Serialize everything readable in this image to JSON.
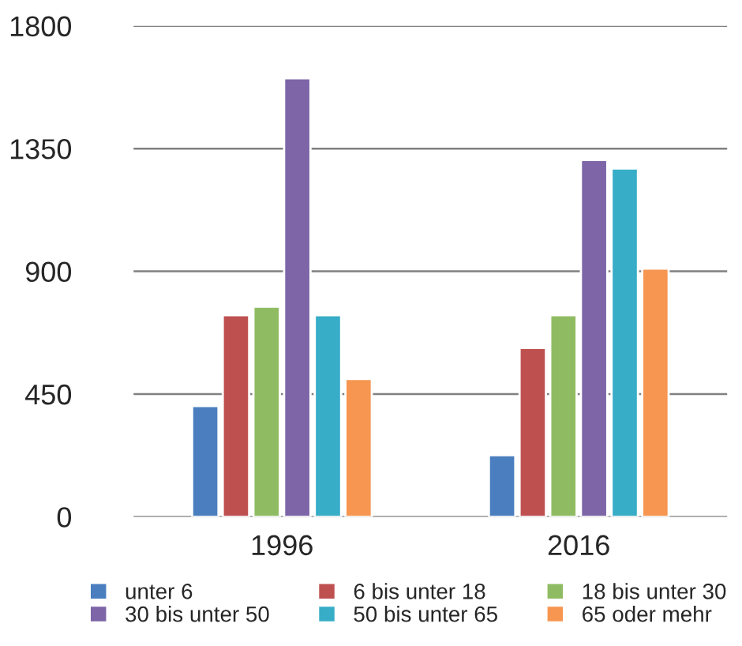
{
  "chart_data": {
    "type": "bar",
    "categories": [
      "1996",
      "2016"
    ],
    "series": [
      {
        "name": "unter 6",
        "color": "#4a7ebf",
        "values": [
          406,
          226
        ]
      },
      {
        "name": "6 bis unter 18",
        "color": "#be5150",
        "values": [
          739,
          619
        ]
      },
      {
        "name": "18 bis unter 30",
        "color": "#8fbc62",
        "values": [
          770,
          739
        ]
      },
      {
        "name": "30 bis unter 50",
        "color": "#7d65a8",
        "values": [
          1608,
          1308
        ]
      },
      {
        "name": "50 bis unter 65",
        "color": "#37adc7",
        "values": [
          739,
          1277
        ]
      },
      {
        "name": "65 oder mehr",
        "color": "#f69650",
        "values": [
          505,
          910
        ]
      }
    ],
    "ylim": [
      0,
      1800
    ],
    "yticks": [
      0,
      450,
      900,
      1350,
      1800
    ],
    "grid": "y",
    "legend": "bottom"
  }
}
